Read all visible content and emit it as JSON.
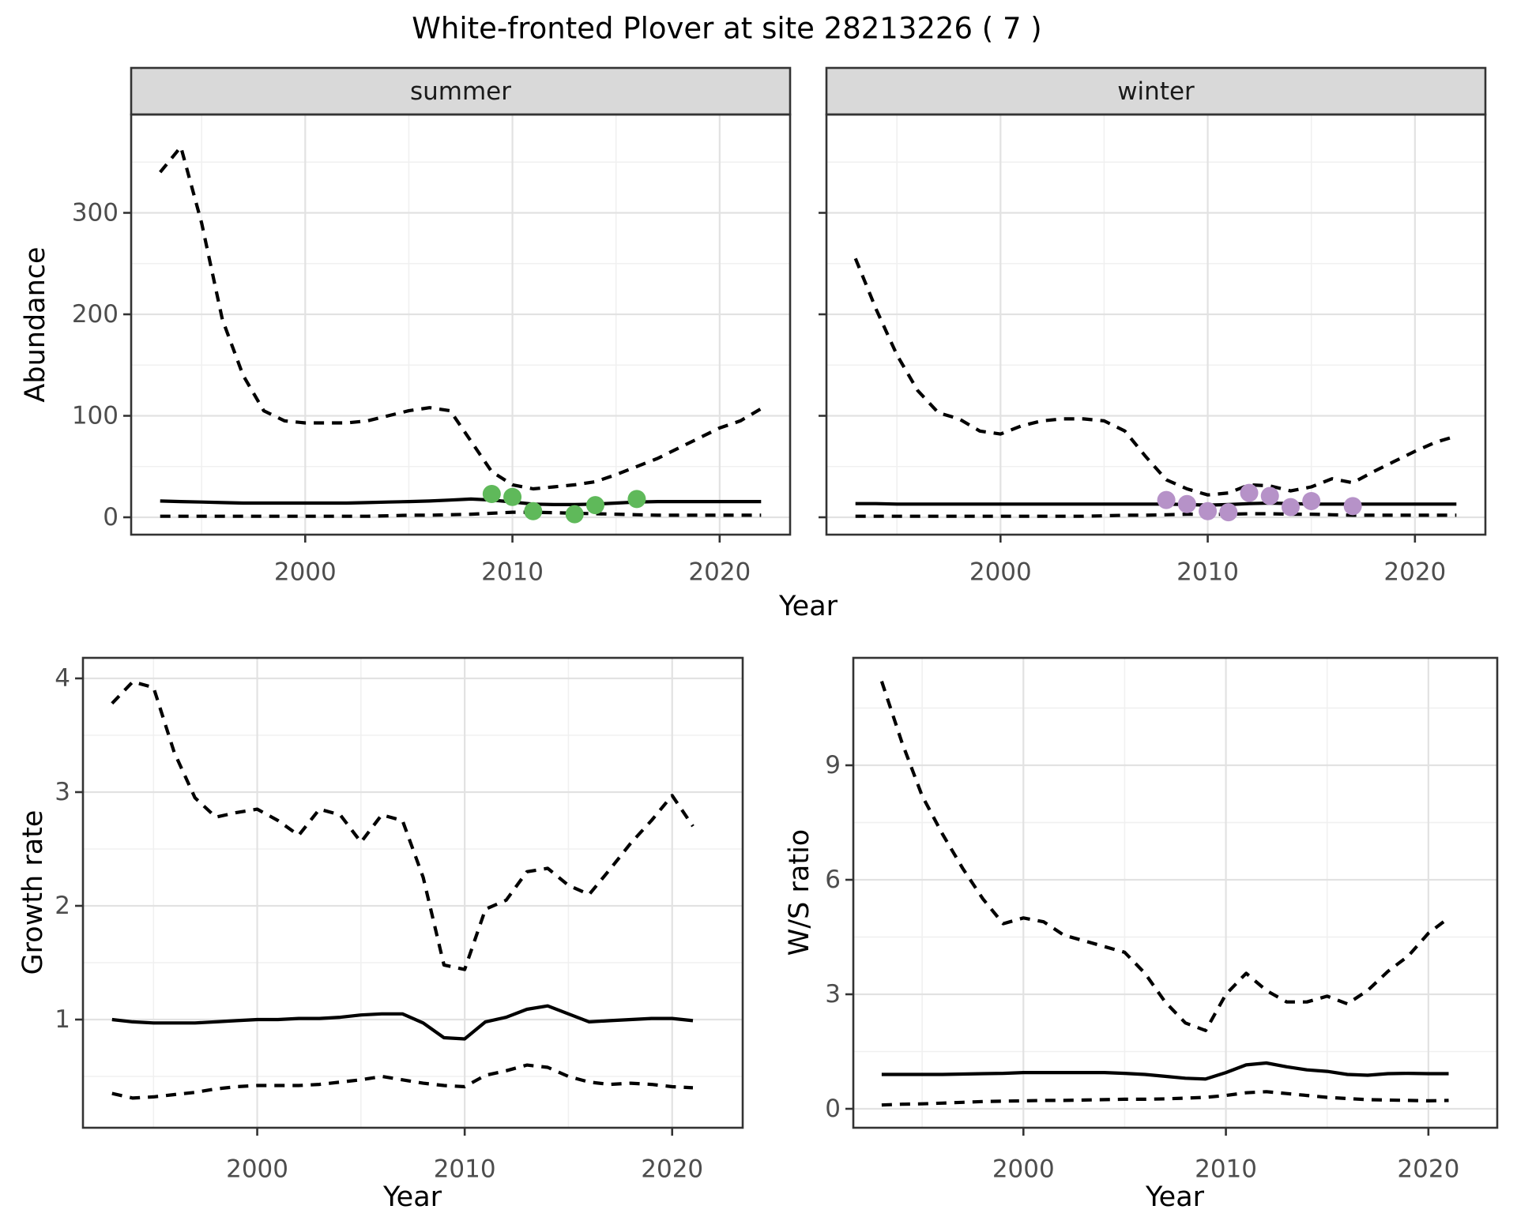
{
  "title": "White-fronted Plover at site 28213226 ( 7 )",
  "colors": {
    "line": "#000000",
    "summer_points": "#5FB95A",
    "winter_points": "#B692C8",
    "strip_fill": "#D9D9D9",
    "panel_border": "#333333",
    "grid_major": "#E2E2E2",
    "grid_minor": "#F0F0F0",
    "tick_text": "#4D4D4D",
    "background": "#FFFFFF"
  },
  "chart_data": [
    {
      "type": "line",
      "id": "abundance-summer",
      "facet": "summer",
      "xlabel": "Year",
      "ylabel": "Abundance",
      "xlim": [
        1991.6,
        2023.4
      ],
      "ylim": [
        -17,
        397
      ],
      "xticks": [
        2000,
        2010,
        2020
      ],
      "xminor": [
        1995,
        2005,
        2015
      ],
      "yticks": [
        0,
        100,
        200,
        300
      ],
      "yminor": [
        50,
        150,
        250,
        350
      ],
      "grid": true,
      "legend": "none",
      "x": [
        1993,
        1994,
        1995,
        1996,
        1997,
        1998,
        1999,
        2000,
        2001,
        2002,
        2003,
        2004,
        2005,
        2006,
        2007,
        2008,
        2009,
        2010,
        2011,
        2012,
        2013,
        2014,
        2015,
        2016,
        2017,
        2018,
        2019,
        2020,
        2021,
        2022
      ],
      "series": [
        {
          "name": "upper-ci",
          "style": "dashed",
          "values": [
            340,
            365,
            290,
            195,
            140,
            105,
            95,
            93,
            93,
            93,
            95,
            100,
            105,
            108,
            105,
            75,
            45,
            32,
            28,
            30,
            32,
            35,
            42,
            50,
            58,
            68,
            78,
            88,
            95,
            107
          ]
        },
        {
          "name": "median",
          "style": "solid",
          "values": [
            16,
            15.5,
            15,
            14.5,
            14,
            14,
            14,
            14,
            14,
            14,
            14.5,
            15,
            15.5,
            16,
            17,
            18,
            17,
            15,
            13,
            12.5,
            12.5,
            13,
            14,
            15,
            15.5,
            15.5,
            15.5,
            15.5,
            15.5,
            15.5
          ]
        },
        {
          "name": "lower-ci",
          "style": "dashed",
          "values": [
            1,
            1,
            1,
            1,
            1,
            1,
            1,
            1,
            1,
            1,
            1,
            1.5,
            2,
            2,
            2.5,
            3,
            4,
            5,
            5,
            4.5,
            4,
            3.5,
            3,
            2.5,
            2,
            2,
            2,
            2,
            2,
            2
          ]
        }
      ],
      "points": {
        "x": [
          2009,
          2010,
          2011,
          2013,
          2014,
          2016
        ],
        "y": [
          23,
          20,
          6,
          3,
          12,
          18
        ],
        "color_key": "summer_points"
      }
    },
    {
      "type": "line",
      "id": "abundance-winter",
      "facet": "winter",
      "xlabel": "Year",
      "ylabel": "Abundance",
      "xlim": [
        1991.6,
        2023.4
      ],
      "ylim": [
        -17,
        397
      ],
      "xticks": [
        2000,
        2010,
        2020
      ],
      "xminor": [
        1995,
        2005,
        2015
      ],
      "yticks": [
        0,
        100,
        200,
        300
      ],
      "yminor": [
        50,
        150,
        250,
        350
      ],
      "grid": true,
      "legend": "none",
      "x": [
        1993,
        1994,
        1995,
        1996,
        1997,
        1998,
        1999,
        2000,
        2001,
        2002,
        2003,
        2004,
        2005,
        2006,
        2007,
        2008,
        2009,
        2010,
        2011,
        2012,
        2013,
        2014,
        2015,
        2016,
        2017,
        2018,
        2019,
        2020,
        2021,
        2022
      ],
      "series": [
        {
          "name": "upper-ci",
          "style": "dashed",
          "values": [
            255,
            205,
            160,
            125,
            103,
            97,
            85,
            82,
            90,
            95,
            97,
            97,
            95,
            85,
            60,
            37,
            28,
            22,
            24,
            32,
            31,
            26,
            30,
            38,
            34,
            45,
            55,
            65,
            74,
            80
          ]
        },
        {
          "name": "median",
          "style": "solid",
          "values": [
            13.5,
            13.5,
            13,
            13,
            13,
            13,
            13,
            13,
            13,
            13,
            13,
            13,
            13,
            13,
            13,
            13,
            12.5,
            12,
            12.5,
            13.5,
            14,
            13.5,
            13,
            13,
            13,
            13,
            13,
            13,
            13,
            13
          ]
        },
        {
          "name": "lower-ci",
          "style": "dashed",
          "values": [
            1,
            1,
            1,
            1,
            1,
            1,
            1,
            1,
            1,
            1,
            1,
            1,
            1.5,
            2,
            2,
            2.5,
            3,
            3,
            3,
            3.5,
            3.5,
            3,
            3,
            2.5,
            2,
            2,
            2,
            2,
            2,
            2
          ]
        }
      ],
      "points": {
        "x": [
          2008,
          2009,
          2010,
          2011,
          2012,
          2013,
          2014,
          2015,
          2017
        ],
        "y": [
          17,
          13,
          6,
          5,
          24,
          21,
          10,
          16,
          11
        ],
        "color_key": "winter_points"
      }
    },
    {
      "type": "line",
      "id": "growth-rate",
      "facet": null,
      "xlabel": "Year",
      "ylabel": "Growth rate",
      "xlim": [
        1991.6,
        2023.4
      ],
      "ylim": [
        0.05,
        4.18
      ],
      "xticks": [
        2000,
        2010,
        2020
      ],
      "xminor": [
        1995,
        2005,
        2015
      ],
      "yticks": [
        1,
        2,
        3,
        4
      ],
      "yminor": [
        0.5,
        1.5,
        2.5,
        3.5
      ],
      "grid": true,
      "legend": "none",
      "x": [
        1993,
        1994,
        1995,
        1996,
        1997,
        1998,
        1999,
        2000,
        2001,
        2002,
        2003,
        2004,
        2005,
        2006,
        2007,
        2008,
        2009,
        2010,
        2011,
        2012,
        2013,
        2014,
        2015,
        2016,
        2017,
        2018,
        2019,
        2020,
        2021
      ],
      "series": [
        {
          "name": "upper-ci",
          "style": "dashed",
          "values": [
            3.78,
            3.97,
            3.92,
            3.35,
            2.95,
            2.78,
            2.82,
            2.85,
            2.75,
            2.62,
            2.85,
            2.8,
            2.56,
            2.8,
            2.75,
            2.25,
            1.48,
            1.44,
            1.97,
            2.05,
            2.3,
            2.33,
            2.18,
            2.1,
            2.32,
            2.55,
            2.75,
            2.97,
            2.7
          ]
        },
        {
          "name": "median",
          "style": "solid",
          "values": [
            1.0,
            0.98,
            0.97,
            0.97,
            0.97,
            0.98,
            0.99,
            1.0,
            1.0,
            1.01,
            1.01,
            1.02,
            1.04,
            1.05,
            1.05,
            0.97,
            0.84,
            0.83,
            0.98,
            1.02,
            1.09,
            1.12,
            1.05,
            0.98,
            0.99,
            1.0,
            1.01,
            1.01,
            0.99
          ]
        },
        {
          "name": "lower-ci",
          "style": "dashed",
          "values": [
            0.35,
            0.31,
            0.32,
            0.34,
            0.36,
            0.39,
            0.41,
            0.42,
            0.42,
            0.42,
            0.43,
            0.45,
            0.47,
            0.5,
            0.47,
            0.44,
            0.42,
            0.41,
            0.51,
            0.55,
            0.6,
            0.58,
            0.5,
            0.45,
            0.43,
            0.44,
            0.43,
            0.41,
            0.4
          ]
        }
      ],
      "points": null
    },
    {
      "type": "line",
      "id": "ws-ratio",
      "facet": null,
      "xlabel": "Year",
      "ylabel": "W/S ratio",
      "xlim": [
        1991.6,
        2023.4
      ],
      "ylim": [
        -0.5,
        11.8
      ],
      "xticks": [
        2000,
        2010,
        2020
      ],
      "xminor": [
        1995,
        2005,
        2015
      ],
      "yticks": [
        0,
        3,
        6,
        9
      ],
      "yminor": [
        1.5,
        4.5,
        7.5,
        10.5
      ],
      "grid": true,
      "legend": "none",
      "x": [
        1993,
        1994,
        1995,
        1996,
        1997,
        1998,
        1999,
        2000,
        2001,
        2002,
        2003,
        2004,
        2005,
        2006,
        2007,
        2008,
        2009,
        2010,
        2011,
        2012,
        2013,
        2014,
        2015,
        2016,
        2017,
        2018,
        2019,
        2020,
        2021
      ],
      "series": [
        {
          "name": "upper-ci",
          "style": "dashed",
          "values": [
            11.2,
            9.6,
            8.2,
            7.2,
            6.3,
            5.5,
            4.85,
            5.0,
            4.9,
            4.55,
            4.4,
            4.25,
            4.1,
            3.55,
            2.8,
            2.25,
            2.05,
            3.0,
            3.55,
            3.1,
            2.8,
            2.8,
            2.95,
            2.75,
            3.1,
            3.6,
            4.0,
            4.6,
            5.0
          ]
        },
        {
          "name": "median",
          "style": "solid",
          "values": [
            0.9,
            0.9,
            0.9,
            0.9,
            0.91,
            0.92,
            0.93,
            0.95,
            0.95,
            0.95,
            0.95,
            0.95,
            0.93,
            0.9,
            0.85,
            0.8,
            0.78,
            0.95,
            1.15,
            1.2,
            1.1,
            1.02,
            0.98,
            0.9,
            0.88,
            0.92,
            0.93,
            0.92,
            0.92
          ]
        },
        {
          "name": "lower-ci",
          "style": "dashed",
          "values": [
            0.1,
            0.12,
            0.13,
            0.15,
            0.17,
            0.19,
            0.2,
            0.21,
            0.22,
            0.22,
            0.23,
            0.24,
            0.25,
            0.25,
            0.26,
            0.28,
            0.3,
            0.35,
            0.42,
            0.45,
            0.4,
            0.35,
            0.3,
            0.27,
            0.24,
            0.23,
            0.22,
            0.21,
            0.22
          ]
        }
      ],
      "points": null
    }
  ]
}
